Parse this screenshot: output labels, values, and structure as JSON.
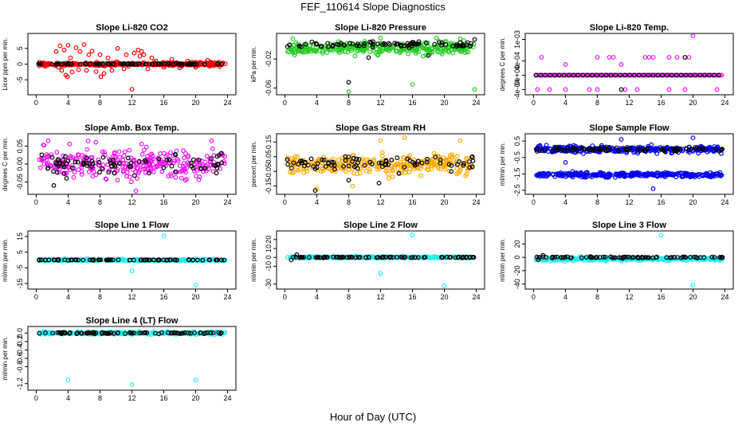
{
  "page": {
    "title": "FEF_110614  Slope Diagnostics",
    "xlabel": "Hour of Day (UTC)"
  },
  "chart_data": [
    {
      "type": "scatter",
      "title": "Slope Li-820 CO2",
      "ylabel": "Licor ppm per min.",
      "xlim": [
        0,
        24
      ],
      "ylim": [
        -9,
        9
      ],
      "xticks": [
        "0",
        "4",
        "8",
        "12",
        "16",
        "20",
        "24"
      ],
      "yticks": [
        {
          "v": -5,
          "t": "-5"
        },
        {
          "v": 0,
          "t": "0"
        },
        {
          "v": 5,
          "t": "5"
        }
      ],
      "color": "#ee0000",
      "series": [
        {
          "color": "#ee0000",
          "center": 0,
          "spread": 0.5,
          "points": [
            [
              2.5,
              4.0
            ],
            [
              2.8,
              -1.0
            ],
            [
              3.0,
              5.8
            ],
            [
              3.2,
              -2.0
            ],
            [
              3.5,
              4.5
            ],
            [
              3.7,
              -3.5
            ],
            [
              3.9,
              -4.0
            ],
            [
              4.0,
              6.0
            ],
            [
              4.3,
              2.0
            ],
            [
              4.5,
              -2.5
            ],
            [
              5.0,
              5.2
            ],
            [
              5.3,
              -1.8
            ],
            [
              5.5,
              4.0
            ],
            [
              6.0,
              6.2
            ],
            [
              6.3,
              -2.0
            ],
            [
              6.6,
              3.0
            ],
            [
              7.0,
              4.1
            ],
            [
              7.5,
              -2.4
            ],
            [
              8.0,
              3.0
            ],
            [
              8.1,
              -4.0
            ],
            [
              8.5,
              -3.0
            ],
            [
              9.0,
              2.0
            ],
            [
              9.5,
              -2.0
            ],
            [
              10.2,
              5.0
            ],
            [
              11.0,
              -1.5
            ],
            [
              11.3,
              3.0
            ],
            [
              12.0,
              -8.0
            ],
            [
              12.3,
              3.5
            ],
            [
              12.8,
              4.5
            ],
            [
              13.0,
              2.5
            ],
            [
              13.2,
              4.0
            ],
            [
              13.5,
              3.0
            ],
            [
              14.0,
              -1.5
            ],
            [
              14.5,
              2.0
            ],
            [
              15.0,
              1.0
            ],
            [
              16.0,
              -1.0
            ],
            [
              17.0,
              1.5
            ],
            [
              18.0,
              -1.2
            ],
            [
              19.0,
              1.0
            ],
            [
              20.0,
              -1.0
            ],
            [
              21.5,
              1.2
            ],
            [
              23.0,
              -0.8
            ]
          ]
        },
        {
          "color": "#000000",
          "center": 0,
          "spread": 0.15,
          "points": []
        }
      ]
    },
    {
      "type": "scatter",
      "title": "Slope Li-820 Pressure",
      "ylabel": "kPa per min.",
      "xlim": [
        0,
        24
      ],
      "ylim": [
        -0.066,
        0.012
      ],
      "xticks": [
        "0",
        "4",
        "8",
        "12",
        "16",
        "20",
        "24"
      ],
      "yticks": [
        {
          "v": -0.06,
          "t": "-0.06"
        },
        {
          "v": -0.02,
          "t": "-0.02"
        }
      ],
      "series": [
        {
          "color": "#22cc22",
          "center": -0.005,
          "spread": 0.008,
          "points": [
            [
              8.0,
              -0.065
            ],
            [
              16.0,
              -0.055
            ],
            [
              23.8,
              -0.062
            ],
            [
              1.0,
              0.008
            ],
            [
              12.0,
              0.009
            ],
            [
              19.0,
              0.009
            ],
            [
              22.0,
              0.008
            ]
          ]
        },
        {
          "color": "#000000",
          "center": 0.0,
          "spread": 0.004,
          "points": [
            [
              8.0,
              -0.052
            ],
            [
              10.5,
              -0.018
            ],
            [
              18.0,
              -0.015
            ],
            [
              23.8,
              0.007
            ]
          ]
        }
      ]
    },
    {
      "type": "scatter",
      "title": "Slope Li-820 Temp.",
      "ylabel": "degrees C per min.",
      "xlim": [
        0,
        24
      ],
      "ylim": [
        -0.00048,
        0.0011
      ],
      "xticks": [
        "0",
        "4",
        "8",
        "12",
        "16",
        "20",
        "24"
      ],
      "yticks": [
        {
          "v": -0.0004,
          "t": "-4e-04"
        },
        {
          "v": 0,
          "t": "0e+00"
        },
        {
          "v": 0.0004,
          "t": "4e-04"
        },
        {
          "v": 0.001,
          "t": "1e-03"
        }
      ],
      "series": [
        {
          "color": "#ee11ee",
          "center": 0,
          "spread": 0,
          "points": [
            [
              1.0,
              0.0005
            ],
            [
              4.0,
              0.0003
            ],
            [
              8.0,
              0.0005
            ],
            [
              9.5,
              0.0005
            ],
            [
              10.0,
              0.0005
            ],
            [
              11.0,
              0.0003
            ],
            [
              14.0,
              0.0005
            ],
            [
              14.5,
              0.0005
            ],
            [
              15.0,
              0.0005
            ],
            [
              17.0,
              0.0005
            ],
            [
              18.0,
              0.0005
            ],
            [
              19.0,
              0.0005
            ],
            [
              20.0,
              0.0011
            ],
            [
              19.5,
              0.0005
            ],
            [
              0.5,
              -0.0004
            ],
            [
              2.0,
              -0.0004
            ],
            [
              4.0,
              -0.0004
            ],
            [
              7.0,
              -0.0004
            ],
            [
              8.0,
              -0.0004
            ],
            [
              11.5,
              -0.0004
            ],
            [
              13.0,
              -0.0004
            ],
            [
              17.0,
              -0.0004
            ],
            [
              19.0,
              -0.0004
            ],
            [
              23.0,
              -0.0004
            ]
          ]
        },
        {
          "color": "#000000",
          "center": 0,
          "spread": 0,
          "points": [
            [
              11.0,
              -0.0004
            ],
            [
              19.0,
              0.0005
            ]
          ]
        }
      ]
    },
    {
      "type": "scatter",
      "title": "Slope Amb. Box Temp.",
      "ylabel": "degrees C per min.",
      "xlim": [
        0,
        24
      ],
      "ylim": [
        -0.078,
        0.078
      ],
      "xticks": [
        "0",
        "4",
        "8",
        "12",
        "16",
        "20",
        "24"
      ],
      "yticks": [
        {
          "v": -0.05,
          "t": "-0.05"
        },
        {
          "v": 0,
          "t": "0.00"
        },
        {
          "v": 0.05,
          "t": "0.05"
        }
      ],
      "series": [
        {
          "color": "#ee11ee",
          "center": 0,
          "spread": 0.04,
          "points": [
            [
              12.5,
              -0.075
            ],
            [
              1.5,
              0.065
            ],
            [
              22.0,
              0.065
            ]
          ]
        },
        {
          "color": "#000000",
          "center": 0,
          "spread": 0.025,
          "points": [
            [
              2.2,
              -0.06
            ],
            [
              3.8,
              -0.04
            ],
            [
              23.2,
              0.03
            ]
          ]
        }
      ]
    },
    {
      "type": "scatter",
      "title": "Slope Gas Stream RH",
      "ylabel": "percent per min.",
      "xlim": [
        0,
        24
      ],
      "ylim": [
        -0.19,
        0.19
      ],
      "xticks": [
        "0",
        "4",
        "8",
        "12",
        "16",
        "20",
        "24"
      ],
      "yticks": [
        {
          "v": -0.15,
          "t": "-0.15"
        },
        {
          "v": -0.05,
          "t": "-0.05"
        },
        {
          "v": 0.05,
          "t": "0.05"
        },
        {
          "v": 0.15,
          "t": "0.15"
        }
      ],
      "series": [
        {
          "color": "#ffaa00",
          "center": 0,
          "spread": 0.07,
          "points": [
            [
              4.0,
              -0.17
            ],
            [
              12.0,
              0.16
            ],
            [
              15.0,
              0.18
            ],
            [
              22.0,
              0.16
            ],
            [
              8.5,
              -0.15
            ]
          ]
        },
        {
          "color": "#000000",
          "center": 0,
          "spread": 0.045,
          "points": [
            [
              3.8,
              -0.18
            ],
            [
              11.8,
              -0.13
            ],
            [
              8.0,
              -0.11
            ],
            [
              23.5,
              0.05
            ]
          ]
        }
      ]
    },
    {
      "type": "scatter",
      "title": "Slope Sample Flow",
      "ylabel": "ml/min per min.",
      "xlim": [
        0,
        24
      ],
      "ylim": [
        -2.6,
        0.8
      ],
      "xticks": [
        "0",
        "4",
        "8",
        "12",
        "16",
        "20",
        "24"
      ],
      "yticks": [
        {
          "v": -2.5,
          "t": "-2.5"
        },
        {
          "v": -1.5,
          "t": "-1.5"
        },
        {
          "v": -0.5,
          "t": "-0.5"
        },
        {
          "v": 0.5,
          "t": "0.5"
        }
      ],
      "series": [
        {
          "color": "#0000ee",
          "center": 0.0,
          "spread": 0.2,
          "points": [
            [
              4.0,
              -0.8
            ],
            [
              11.0,
              0.6
            ],
            [
              20.0,
              0.7
            ],
            [
              15.0,
              -2.4
            ]
          ]
        },
        {
          "color": "#0000ee",
          "center": -1.55,
          "spread": 0.14,
          "points": []
        },
        {
          "color": "#000000",
          "center": 0.0,
          "spread": 0.12,
          "points": []
        }
      ]
    },
    {
      "type": "scatter",
      "title": "Slope Line 1 Flow",
      "ylabel": "ml/min per min.",
      "xlim": [
        0,
        24
      ],
      "ylim": [
        -17,
        17
      ],
      "xticks": [
        "0",
        "4",
        "8",
        "12",
        "16",
        "20",
        "24"
      ],
      "yticks": [
        {
          "v": -15,
          "t": "-15"
        },
        {
          "v": -5,
          "t": "-5"
        },
        {
          "v": 5,
          "t": "5"
        },
        {
          "v": 15,
          "t": "15"
        }
      ],
      "series": [
        {
          "color": "#22eeee",
          "center": 0,
          "spread": 0.6,
          "points": [
            [
              16.0,
              15.5
            ],
            [
              12.0,
              -7.0
            ],
            [
              20.0,
              -16.0
            ]
          ]
        },
        {
          "color": "#000000",
          "center": 0,
          "spread": 0.2,
          "points": []
        }
      ]
    },
    {
      "type": "scatter",
      "title": "Slope Line 2 Flow",
      "ylabel": "ml/min per min.",
      "xlim": [
        0,
        24
      ],
      "ylim": [
        -33,
        27
      ],
      "xticks": [
        "0",
        "4",
        "8",
        "12",
        "16",
        "20",
        "24"
      ],
      "yticks": [
        {
          "v": -30,
          "t": "-30"
        },
        {
          "v": -10,
          "t": "-10"
        },
        {
          "v": 0,
          "t": "0"
        },
        {
          "v": 10,
          "t": "10"
        },
        {
          "v": 20,
          "t": "20"
        }
      ],
      "series": [
        {
          "color": "#22eeee",
          "center": 0,
          "spread": 1.0,
          "points": [
            [
              16.0,
              25.0
            ],
            [
              12.0,
              -18.0
            ],
            [
              20.0,
              -32.0
            ]
          ]
        },
        {
          "color": "#000000",
          "center": 0,
          "spread": 0.5,
          "points": [
            [
              0.8,
              -3.0
            ],
            [
              1.5,
              3.0
            ]
          ]
        }
      ]
    },
    {
      "type": "scatter",
      "title": "Slope Line 3 Flow",
      "ylabel": "ml/min per min.",
      "xlim": [
        0,
        24
      ],
      "ylim": [
        -44,
        36
      ],
      "xticks": [
        "0",
        "4",
        "8",
        "12",
        "16",
        "20",
        "24"
      ],
      "yticks": [
        {
          "v": -40,
          "t": "-40"
        },
        {
          "v": -20,
          "t": "-20"
        },
        {
          "v": 0,
          "t": "0"
        },
        {
          "v": 20,
          "t": "20"
        }
      ],
      "series": [
        {
          "color": "#22eeee",
          "center": -2.5,
          "spread": 2.5,
          "points": [
            [
              16.0,
              33.0
            ],
            [
              20.0,
              -42.0
            ]
          ]
        },
        {
          "color": "#000000",
          "center": 0,
          "spread": 1.0,
          "points": [
            [
              0.6,
              -3.5
            ],
            [
              1.2,
              3.0
            ]
          ]
        }
      ]
    },
    {
      "type": "scatter",
      "title": "Slope Line 4 (LT) Flow",
      "ylabel": "ml/min per min.",
      "xlim": [
        0,
        24
      ],
      "ylim": [
        -1.3,
        0.1
      ],
      "xticks": [
        "0",
        "4",
        "8",
        "12",
        "16",
        "20",
        "24"
      ],
      "yticks": [
        {
          "v": -1.2,
          "t": "-1.2"
        },
        {
          "v": -0.8,
          "t": "-0.8"
        },
        {
          "v": -0.6,
          "t": "-0.6"
        },
        {
          "v": -0.4,
          "t": "-0.4"
        },
        {
          "v": -0.2,
          "t": "-0.2"
        },
        {
          "v": 0.0,
          "t": "0.0"
        }
      ],
      "series": [
        {
          "color": "#22eeee",
          "center": 0.0,
          "spread": 0.03,
          "points": [
            [
              4.0,
              -1.12
            ],
            [
              12.0,
              -1.22
            ],
            [
              20.0,
              -1.12
            ]
          ]
        },
        {
          "color": "#000000",
          "center": 0.0,
          "spread": 0.02,
          "points": []
        }
      ]
    }
  ]
}
